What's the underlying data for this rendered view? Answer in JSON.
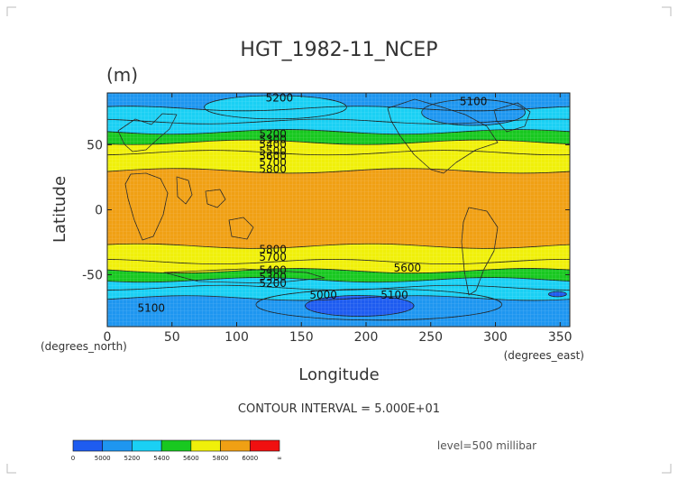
{
  "chart_data": {
    "type": "heatmap",
    "title": "HGT_1982-11_NCEP",
    "units_label": "(m)",
    "xlabel": "Longitude",
    "ylabel": "Latitude",
    "x_unit_note": "(degrees_east)",
    "y_unit_note": "(degrees_north)",
    "xlim": [
      0,
      357.5
    ],
    "ylim": [
      -90,
      90
    ],
    "x_ticks": [
      0,
      50,
      100,
      150,
      200,
      250,
      300,
      350
    ],
    "y_ticks": [
      -50,
      0,
      50
    ],
    "contour_interval_text": "CONTOUR INTERVAL = 5.000E+01",
    "level_text": "level=500 millibar",
    "bands": [
      {
        "lat_from": 90,
        "lat_to": 78,
        "value": 5150
      },
      {
        "lat_from": 78,
        "lat_to": 68,
        "value": 5250
      },
      {
        "lat_from": 68,
        "lat_to": 60,
        "value": 5380
      },
      {
        "lat_from": 60,
        "lat_to": 52,
        "value": 5520
      },
      {
        "lat_from": 52,
        "lat_to": 44,
        "value": 5660
      },
      {
        "lat_from": 44,
        "lat_to": 30,
        "value": 5750
      },
      {
        "lat_from": 30,
        "lat_to": -28,
        "value": 5850
      },
      {
        "lat_from": -28,
        "lat_to": -40,
        "value": 5750
      },
      {
        "lat_from": -40,
        "lat_to": -47,
        "value": 5620
      },
      {
        "lat_from": -47,
        "lat_to": -54,
        "value": 5500
      },
      {
        "lat_from": -54,
        "lat_to": -60,
        "value": 5380
      },
      {
        "lat_from": -60,
        "lat_to": -68,
        "value": 5250
      },
      {
        "lat_from": -68,
        "lat_to": -90,
        "value": 5100
      }
    ],
    "features": [
      {
        "type": "high",
        "lon": 130,
        "lat": 79,
        "rx": 55,
        "ry": 9,
        "value": 5250
      },
      {
        "type": "low",
        "lon": 283,
        "lat": 75,
        "rx": 40,
        "ry": 10,
        "value": 5050
      },
      {
        "type": "low",
        "lon": 195,
        "lat": -74,
        "rx": 42,
        "ry": 8,
        "value": 4980
      },
      {
        "type": "low",
        "lon": 348,
        "lat": -65,
        "rx": 7,
        "ry": 2,
        "value": 4980
      },
      {
        "type": "band",
        "lon": 210,
        "lat": -73,
        "rx": 95,
        "ry": 12,
        "value": 5080
      }
    ],
    "contour_labels": [
      {
        "text": "5200",
        "lon": 133,
        "lat": 86
      },
      {
        "text": "5100",
        "lon": 283,
        "lat": 83
      },
      {
        "text": "5200",
        "lon": 128,
        "lat": 58
      },
      {
        "text": "5300",
        "lon": 128,
        "lat": 54
      },
      {
        "text": "5400",
        "lon": 128,
        "lat": 50
      },
      {
        "text": "5500",
        "lon": 128,
        "lat": 45
      },
      {
        "text": "5600",
        "lon": 128,
        "lat": 41
      },
      {
        "text": "5700",
        "lon": 128,
        "lat": 36
      },
      {
        "text": "5800",
        "lon": 128,
        "lat": 31
      },
      {
        "text": "5800",
        "lon": 128,
        "lat": -31
      },
      {
        "text": "5700",
        "lon": 128,
        "lat": -37
      },
      {
        "text": "5600",
        "lon": 232,
        "lat": -45
      },
      {
        "text": "5400",
        "lon": 128,
        "lat": -47
      },
      {
        "text": "5300",
        "lon": 128,
        "lat": -52
      },
      {
        "text": "5200",
        "lon": 128,
        "lat": -57
      },
      {
        "text": "5000",
        "lon": 167,
        "lat": -66
      },
      {
        "text": "5100",
        "lon": 222,
        "lat": -66
      },
      {
        "text": "5100",
        "lon": 34,
        "lat": -76
      }
    ],
    "colorbar": {
      "levels": [
        0,
        5000,
        5200,
        5400,
        5600,
        5800,
        6000,
        "∞"
      ],
      "tick_labels": [
        "0",
        "5000",
        "5200",
        "5400",
        "5600",
        "5800",
        "6000",
        "∞"
      ],
      "colors": [
        "#1e5cf0",
        "#1e96f0",
        "#1ad0f4",
        "#18c820",
        "#f0f00a",
        "#f0a014",
        "#f01010"
      ]
    }
  }
}
